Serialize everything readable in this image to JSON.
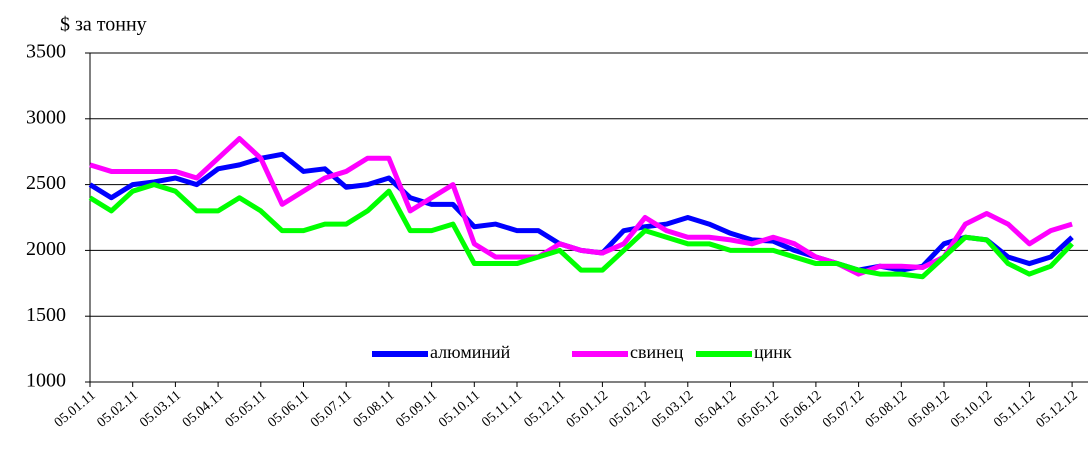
{
  "chart_data": {
    "type": "line",
    "y_label": "$ за тонну",
    "categories": [
      "05.01.11",
      null,
      "05.02.11",
      null,
      "05.03.11",
      null,
      "05.04.11",
      null,
      "05.05.11",
      null,
      "05.06.11",
      null,
      "05.07.11",
      null,
      "05.08.11",
      null,
      "05.09.11",
      null,
      "05.10.11",
      null,
      "05.11.11",
      null,
      "05.12.11",
      null,
      "05.01.12",
      null,
      "05.02.12",
      null,
      "05.03.12",
      null,
      "05.04.12",
      null,
      "05.05.12",
      null,
      "05.06.12",
      null,
      "05.07.12",
      null,
      "05.08.12",
      null,
      "05.09.12",
      null,
      "05.10.12",
      null,
      "05.11.12",
      null,
      "05.12.12"
    ],
    "series": [
      {
        "name": "алюминий",
        "color": "#0000ff",
        "values": [
          2500,
          2400,
          2500,
          2520,
          2550,
          2500,
          2620,
          2650,
          2700,
          2730,
          2600,
          2620,
          2480,
          2500,
          2550,
          2400,
          2350,
          2350,
          2180,
          2200,
          2150,
          2150,
          2050,
          2000,
          1980,
          2150,
          2180,
          2200,
          2250,
          2200,
          2130,
          2080,
          2070,
          2000,
          1950,
          1900,
          1850,
          1880,
          1850,
          1880,
          2050,
          2100,
          2080,
          1950,
          1900,
          1950,
          2100
        ]
      },
      {
        "name": "свинец",
        "color": "#ff00ff",
        "values": [
          2650,
          2600,
          2600,
          2600,
          2600,
          2550,
          2700,
          2850,
          2700,
          2350,
          2450,
          2550,
          2600,
          2700,
          2700,
          2300,
          2400,
          2500,
          2050,
          1950,
          1950,
          1950,
          2050,
          2000,
          1980,
          2050,
          2250,
          2150,
          2100,
          2100,
          2080,
          2050,
          2100,
          2050,
          1950,
          1900,
          1820,
          1880,
          1880,
          1870,
          1950,
          2200,
          2280,
          2200,
          2050,
          2150,
          2200
        ]
      },
      {
        "name": "цинк",
        "color": "#00ff00",
        "values": [
          2400,
          2300,
          2450,
          2500,
          2450,
          2300,
          2300,
          2400,
          2300,
          2150,
          2150,
          2200,
          2200,
          2300,
          2450,
          2150,
          2150,
          2200,
          1900,
          1900,
          1900,
          1950,
          2000,
          1850,
          1850,
          2000,
          2150,
          2100,
          2050,
          2050,
          2000,
          2000,
          2000,
          1950,
          1900,
          1900,
          1850,
          1820,
          1820,
          1800,
          1950,
          2100,
          2080,
          1900,
          1820,
          1880,
          2050
        ]
      }
    ],
    "ylim": [
      1000,
      3500
    ],
    "yticks": [
      1000,
      1500,
      2000,
      2500,
      3000,
      3500
    ],
    "grid": true,
    "legend": "bottom"
  }
}
